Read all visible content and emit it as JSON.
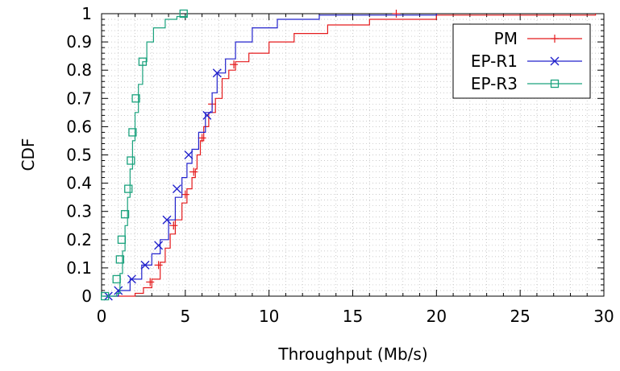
{
  "chart_data": {
    "type": "line",
    "title": "",
    "xlabel": "Throughput (Mb/s)",
    "ylabel": "CDF",
    "xlim": [
      0,
      30
    ],
    "ylim": [
      0,
      1
    ],
    "x_ticks": [
      0,
      5,
      10,
      15,
      20,
      25,
      30
    ],
    "y_ticks": [
      0,
      0.1,
      0.2,
      0.3,
      0.4,
      0.5,
      0.6,
      0.7,
      0.8,
      0.9,
      1
    ],
    "x_tick_labels": [
      "0",
      "5",
      "10",
      "15",
      "20",
      "25",
      "30"
    ],
    "y_tick_labels": [
      "0",
      "0.1",
      "0.2",
      "0.3",
      "0.4",
      "0.5",
      "0.6",
      "0.7",
      "0.8",
      "0.9",
      "1"
    ],
    "grid": "dotted",
    "legend_position": "top-right",
    "series": [
      {
        "name": "PM",
        "color": "#e41a1c",
        "marker": "plus",
        "points": [
          [
            0.7,
            0
          ],
          [
            2.0,
            0.01
          ],
          [
            2.5,
            0.03
          ],
          [
            3.0,
            0.06
          ],
          [
            3.5,
            0.12
          ],
          [
            3.8,
            0.17
          ],
          [
            4.1,
            0.22
          ],
          [
            4.4,
            0.27
          ],
          [
            4.8,
            0.33
          ],
          [
            5.1,
            0.38
          ],
          [
            5.4,
            0.42
          ],
          [
            5.6,
            0.45
          ],
          [
            5.7,
            0.5
          ],
          [
            5.9,
            0.55
          ],
          [
            6.1,
            0.6
          ],
          [
            6.4,
            0.65
          ],
          [
            6.8,
            0.7
          ],
          [
            7.2,
            0.77
          ],
          [
            7.6,
            0.8
          ],
          [
            8.0,
            0.83
          ],
          [
            8.8,
            0.86
          ],
          [
            10.0,
            0.9
          ],
          [
            11.5,
            0.93
          ],
          [
            13.5,
            0.96
          ],
          [
            16.0,
            0.98
          ],
          [
            20.0,
            0.995
          ],
          [
            29.5,
            1.0
          ]
        ],
        "markers": [
          [
            2.9,
            0.05
          ],
          [
            3.4,
            0.11
          ],
          [
            4.3,
            0.25
          ],
          [
            5.0,
            0.36
          ],
          [
            5.5,
            0.44
          ],
          [
            6.0,
            0.56
          ],
          [
            6.6,
            0.68
          ],
          [
            7.9,
            0.82
          ],
          [
            17.6,
            1.0
          ]
        ]
      },
      {
        "name": "EP-R1",
        "color": "#2222cc",
        "marker": "x",
        "points": [
          [
            0.1,
            0
          ],
          [
            0.5,
            0.0
          ],
          [
            1.0,
            0.02
          ],
          [
            1.7,
            0.06
          ],
          [
            2.4,
            0.11
          ],
          [
            3.0,
            0.15
          ],
          [
            3.5,
            0.2
          ],
          [
            4.0,
            0.27
          ],
          [
            4.4,
            0.35
          ],
          [
            4.8,
            0.42
          ],
          [
            5.1,
            0.47
          ],
          [
            5.4,
            0.52
          ],
          [
            5.8,
            0.58
          ],
          [
            6.2,
            0.65
          ],
          [
            6.6,
            0.72
          ],
          [
            6.9,
            0.79
          ],
          [
            7.4,
            0.84
          ],
          [
            8.0,
            0.9
          ],
          [
            9.0,
            0.95
          ],
          [
            10.5,
            0.98
          ],
          [
            13.0,
            0.995
          ],
          [
            20.0,
            1.0
          ]
        ],
        "markers": [
          [
            0.4,
            0.0
          ],
          [
            1.0,
            0.02
          ],
          [
            1.8,
            0.06
          ],
          [
            2.6,
            0.11
          ],
          [
            3.4,
            0.18
          ],
          [
            3.9,
            0.27
          ],
          [
            4.5,
            0.38
          ],
          [
            5.2,
            0.5
          ],
          [
            6.3,
            0.64
          ],
          [
            6.9,
            0.79
          ]
        ]
      },
      {
        "name": "EP-R3",
        "color": "#1aa27d",
        "marker": "square",
        "points": [
          [
            0.0,
            0
          ],
          [
            0.9,
            0.01
          ],
          [
            1.1,
            0.08
          ],
          [
            1.25,
            0.16
          ],
          [
            1.4,
            0.25
          ],
          [
            1.55,
            0.35
          ],
          [
            1.7,
            0.45
          ],
          [
            1.85,
            0.55
          ],
          [
            2.0,
            0.65
          ],
          [
            2.2,
            0.75
          ],
          [
            2.45,
            0.83
          ],
          [
            2.7,
            0.9
          ],
          [
            3.1,
            0.95
          ],
          [
            3.8,
            0.98
          ],
          [
            4.5,
            0.99
          ],
          [
            5.1,
            1.0
          ]
        ],
        "markers": [
          [
            0.2,
            0.0
          ],
          [
            0.9,
            0.06
          ],
          [
            1.1,
            0.13
          ],
          [
            1.2,
            0.2
          ],
          [
            1.4,
            0.29
          ],
          [
            1.6,
            0.38
          ],
          [
            1.75,
            0.48
          ],
          [
            1.85,
            0.58
          ],
          [
            2.05,
            0.7
          ],
          [
            2.45,
            0.83
          ],
          [
            4.9,
            1.0
          ]
        ]
      }
    ]
  }
}
